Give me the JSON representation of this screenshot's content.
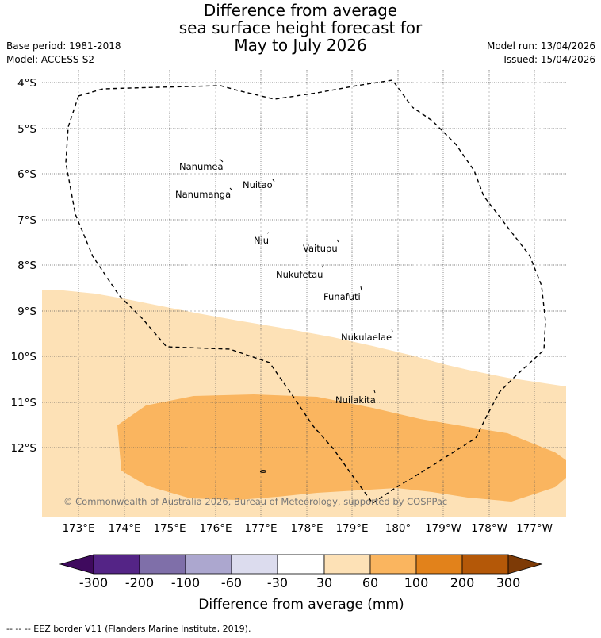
{
  "title": {
    "line1": "Difference from average",
    "line2": "sea surface height forecast for",
    "line3": "May to July 2026"
  },
  "meta": {
    "base_period": "Base period: 1981-2018",
    "model": "Model: ACCESS-S2",
    "model_run": "Model run: 13/04/2026",
    "issued": "Issued: 15/04/2026"
  },
  "map": {
    "lat_labels": [
      "4°S",
      "5°S",
      "6°S",
      "7°S",
      "8°S",
      "9°S",
      "10°S",
      "11°S",
      "12°S"
    ],
    "lon_labels": [
      "173°E",
      "174°E",
      "175°E",
      "176°E",
      "177°E",
      "178°E",
      "179°E",
      "180°",
      "179°W",
      "178°W",
      "177°W"
    ],
    "places": [
      {
        "name": "Nanumea"
      },
      {
        "name": "Nuitao"
      },
      {
        "name": "Nanumanga"
      },
      {
        "name": "Niu"
      },
      {
        "name": "Vaitupu"
      },
      {
        "name": "Nukufetau"
      },
      {
        "name": "Funafuti"
      },
      {
        "name": "Nukulaelae"
      },
      {
        "name": "Nuilakita"
      }
    ],
    "copyright": "© Commonwealth of Australia 2026, Bureau of Meteorology, supported by COSPPac"
  },
  "colorbar": {
    "labels": [
      "-300",
      "-200",
      "-100",
      "-60",
      "-30",
      "30",
      "60",
      "100",
      "200",
      "300"
    ],
    "colors": [
      "#3f0a5e",
      "#542486",
      "#7f6fa9",
      "#aca7cf",
      "#dcdcee",
      "#ffffff",
      "#fde1b6",
      "#fab55f",
      "#e2821b",
      "#b45808",
      "#7d3a06"
    ],
    "label": "Difference from average (mm)"
  },
  "footnote": "--  --  -- EEZ border V11 (Flanders Marine Institute, 2019)."
}
